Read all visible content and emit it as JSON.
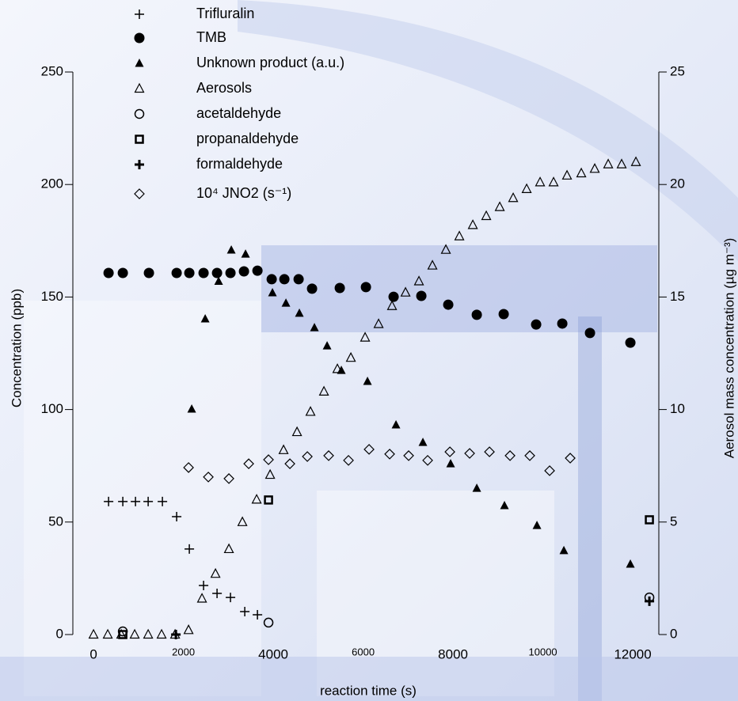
{
  "chart_data": {
    "type": "scatter",
    "xlabel": "reaction time (s)",
    "ylabel": "Concentration  (ppb)",
    "y2label": "Aerosol mass concentration (µg m⁻³)",
    "xlim": [
      -460,
      12580
    ],
    "xticks": [
      0,
      4000,
      8000,
      12000
    ],
    "xticks_minor": [
      2000,
      6000,
      10000
    ],
    "ylim": [
      0,
      250
    ],
    "yticks": [
      0,
      50,
      100,
      150,
      200,
      250
    ],
    "y2lim": [
      0,
      25
    ],
    "y2ticks": [
      0,
      5,
      10,
      15,
      20,
      25
    ],
    "legend": "top-left",
    "series": [
      {
        "name": "Trifluralin",
        "marker": "plus",
        "color": "#000000",
        "x": [
          335,
          652,
          934,
          1216,
          1533,
          1850,
          2132,
          2449,
          2749,
          3048,
          3366,
          3648
        ],
        "values": [
          59.1,
          59.1,
          59.1,
          59.1,
          59.1,
          52.4,
          38,
          21.8,
          18.3,
          16.5,
          10.2,
          8.8
        ]
      },
      {
        "name": "TMB",
        "marker": "circle-filled",
        "color": "#000000",
        "x": [
          335,
          652,
          1233,
          1850,
          2132,
          2449,
          2749,
          3048,
          3348,
          3648,
          3965,
          4247,
          4564,
          4863,
          5480,
          6062,
          6678,
          7295,
          7894,
          8529,
          9128,
          9850,
          10432,
          11048,
          11947
        ],
        "values": [
          160.7,
          160.7,
          160.7,
          160.7,
          160.7,
          160.7,
          160.7,
          160.7,
          161.4,
          161.7,
          157.9,
          157.9,
          157.9,
          153.7,
          154.0,
          154.4,
          150.1,
          150.5,
          146.6,
          142.1,
          142.4,
          137.8,
          138.2,
          134.0,
          129.7
        ]
      },
      {
        "name": "Unknown product (a.u.)",
        "marker": "triangle-filled",
        "color": "#000000",
        "x": [
          2185,
          2485,
          2784,
          3066,
          3383,
          3982,
          4282,
          4581,
          4916,
          5198,
          5515,
          6097,
          6731,
          7330,
          7947,
          8529,
          9145,
          9868,
          10467,
          11947
        ],
        "values": [
          100.2,
          140.3,
          157,
          170.9,
          169.1,
          151.9,
          147.3,
          142.8,
          136.4,
          128.3,
          117.4,
          112.5,
          93.2,
          85.4,
          75.9,
          65.0,
          57.3,
          48.5,
          37.3,
          31.3
        ]
      },
      {
        "name": "Aerosols",
        "marker": "triangle-open",
        "color": "#000000",
        "axis": "y2",
        "x": [
          0,
          317,
          617,
          916,
          1216,
          1515,
          1815,
          2115,
          2414,
          2714,
          3013,
          3313,
          3630,
          3930,
          4229,
          4529,
          4828,
          5128,
          5427,
          5727,
          6044,
          6344,
          6643,
          6943,
          7242,
          7542,
          7841,
          8141,
          8441,
          8740,
          9040,
          9339,
          9639,
          9938,
          10238,
          10537,
          10855,
          11154,
          11454,
          11753,
          12070
        ],
        "values": [
          0,
          0,
          0,
          0,
          0,
          0,
          0,
          0.2,
          1.6,
          2.7,
          3.8,
          5.0,
          6.0,
          7.1,
          8.2,
          9.0,
          9.9,
          10.8,
          11.8,
          12.3,
          13.2,
          13.8,
          14.6,
          15.2,
          15.7,
          16.4,
          17.1,
          17.7,
          18.2,
          18.6,
          19.0,
          19.4,
          19.8,
          20.1,
          20.1,
          20.4,
          20.5,
          20.7,
          20.9,
          20.9,
          21.0
        ]
      },
      {
        "name": "acetaldehyde",
        "marker": "circle-open",
        "color": "#000000",
        "x": [
          652,
          3894,
          12370
        ],
        "values": [
          1.4,
          5.3,
          16.5
        ]
      },
      {
        "name": "propanaldehyde",
        "marker": "square-open",
        "color": "#000000",
        "x": [
          652,
          3894,
          12370
        ],
        "values": [
          0,
          59.8,
          51
        ]
      },
      {
        "name": "formaldehyde",
        "marker": "plus-bold",
        "color": "#000000",
        "x": [
          1833,
          12370
        ],
        "values": [
          0,
          14.8
        ]
      },
      {
        "name": "10⁴ JNO2 (s⁻¹)",
        "marker": "diamond-open",
        "color": "#000000",
        "x": [
          2115,
          2555,
          3013,
          3454,
          3894,
          4370,
          4758,
          5233,
          5674,
          6132,
          6590,
          7013,
          7436,
          7930,
          8370,
          8811,
          9269,
          9709,
          10150,
          10608
        ],
        "values": [
          74.2,
          70.0,
          69.3,
          75.9,
          77.7,
          75.9,
          79.1,
          79.5,
          77.4,
          82.3,
          80.2,
          79.5,
          77.4,
          81.2,
          80.5,
          81.2,
          79.5,
          79.5,
          72.8,
          78.4
        ]
      }
    ]
  }
}
